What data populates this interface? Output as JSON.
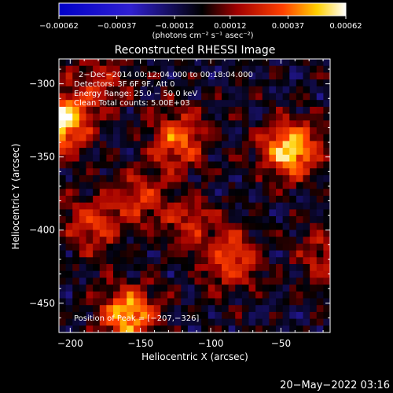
{
  "chart_data": {
    "type": "heatmap",
    "title": "Reconstructed RHESSI Image",
    "xlabel": "Heliocentric X (arcsec)",
    "ylabel": "Heliocentric Y (arcsec)",
    "xlim": [
      -208,
      -15
    ],
    "ylim": [
      -470,
      -283
    ],
    "x_ticks": [
      -200,
      -150,
      -100,
      -50
    ],
    "x_tick_labels": [
      "−200",
      "−150",
      "−100",
      "−50"
    ],
    "y_ticks": [
      -300,
      -350,
      -400,
      -450
    ],
    "y_tick_labels": [
      "−300",
      "−350",
      "−400",
      "−450"
    ],
    "colorbar": {
      "min": -0.00062,
      "max": 0.00062,
      "ticks": [
        -0.00062,
        -0.00037,
        -0.00012,
        0.00012,
        0.00037,
        0.00062
      ],
      "tick_labels": [
        "−0.00062",
        "−0.00037",
        "−0.00012",
        "0.00012",
        "0.00037",
        "0.00062"
      ],
      "unit_label": "(photons cm⁻² s⁻¹ asec⁻²)"
    },
    "annotations": [
      "2−Dec−2014 00:12:04.000 to 00:18:04.000",
      "Detectors: 3F 6F 9F, Att 0",
      "Energy Range: 25.0 − 50.0 keV",
      "Clean    Total counts: 5.00E+03"
    ],
    "peak_label": "Position of Peak = [−207,−326]",
    "peak": {
      "x": -207,
      "y": -326
    },
    "sources": [
      {
        "x": -207,
        "y": -326,
        "intensity": 0.00062
      },
      {
        "x": -43,
        "y": -345,
        "intensity": 0.00058
      },
      {
        "x": -158,
        "y": -458,
        "intensity": 0.00052
      },
      {
        "x": -123,
        "y": -338,
        "intensity": 0.0004
      },
      {
        "x": -85,
        "y": -420,
        "intensity": 0.00035
      },
      {
        "x": -185,
        "y": -395,
        "intensity": 0.0003
      },
      {
        "x": -150,
        "y": -380,
        "intensity": 0.00026
      },
      {
        "x": -115,
        "y": -395,
        "intensity": 0.00022
      },
      {
        "x": -20,
        "y": -420,
        "intensity": 0.00024
      },
      {
        "x": -178,
        "y": -300,
        "intensity": 0.00022
      }
    ],
    "colors": {
      "background": "#000000",
      "text": "#ffffff"
    }
  },
  "timestamp": "20−May−2022 03:16"
}
